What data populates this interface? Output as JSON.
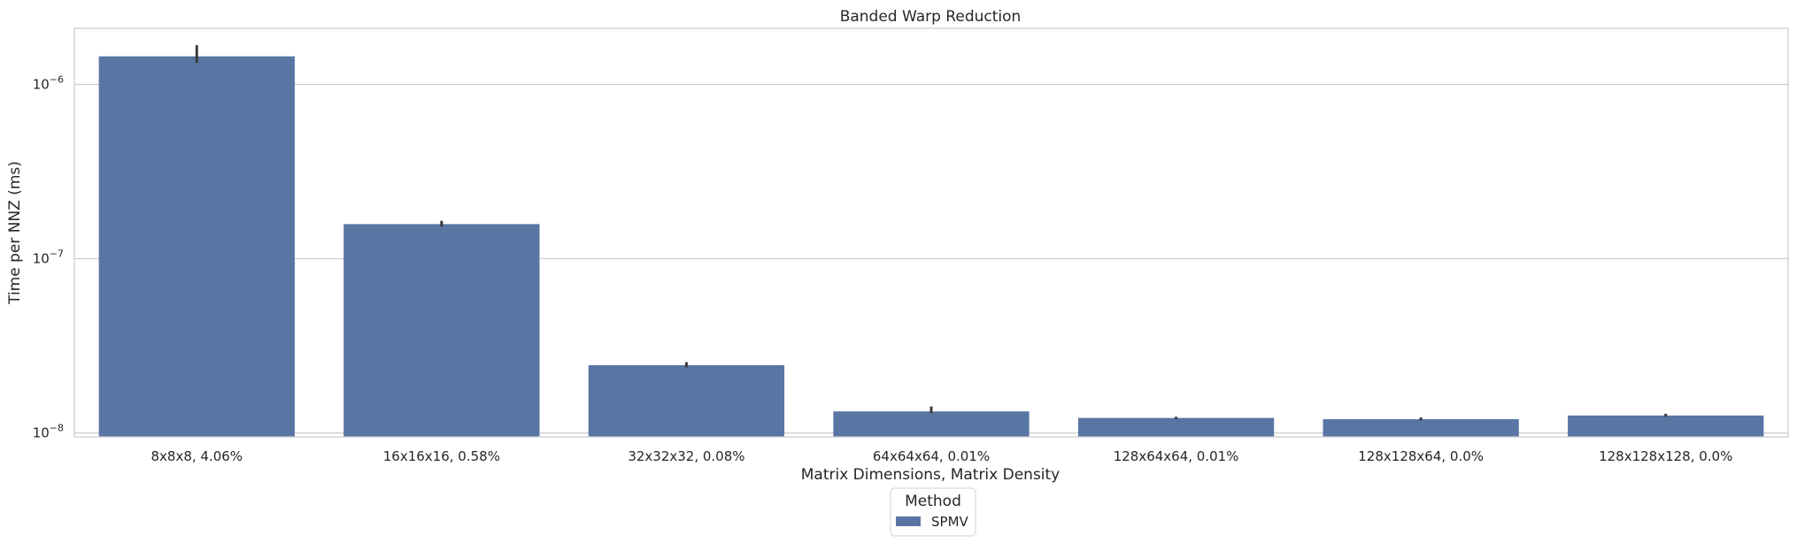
{
  "chart_data": {
    "type": "bar",
    "title": "Banded Warp Reduction",
    "xlabel": "Matrix Dimensions, Matrix Density",
    "ylabel": "Time per NNZ (ms)",
    "yscale": "log",
    "ylim": [
      9.5e-09,
      2.1e-06
    ],
    "yticks": [
      {
        "value": 1e-08,
        "base": "10",
        "exp": "−8"
      },
      {
        "value": 1e-07,
        "base": "10",
        "exp": "−7"
      },
      {
        "value": 1e-06,
        "base": "10",
        "exp": "−6"
      }
    ],
    "categories": [
      "8x8x8, 4.06%",
      "16x16x16, 0.58%",
      "32x32x32, 0.08%",
      "64x64x64, 0.01%",
      "128x64x64, 0.01%",
      "128x128x64, 0.0%",
      "128x128x128, 0.0%"
    ],
    "series": [
      {
        "name": "SPMV",
        "color": "#5875a4",
        "values": [
          1.45e-06,
          1.58e-07,
          2.45e-08,
          1.33e-08,
          1.22e-08,
          1.2e-08,
          1.26e-08
        ],
        "err_low": [
          1.33e-06,
          1.53e-07,
          2.38e-08,
          1.3e-08,
          1.2e-08,
          1.18e-08,
          1.24e-08
        ],
        "err_high": [
          1.68e-06,
          1.65e-07,
          2.55e-08,
          1.42e-08,
          1.24e-08,
          1.23e-08,
          1.29e-08
        ]
      }
    ],
    "grid": true,
    "legend": {
      "title": "Method",
      "placement": "bottom-center"
    }
  }
}
